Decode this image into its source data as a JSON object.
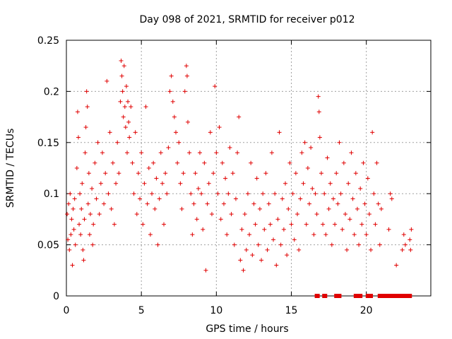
{
  "chart_data": {
    "type": "scatter",
    "title": "Day 098 of 2021, SRMTID for receiver p012",
    "xlabel": "GPS time / hours",
    "ylabel": "SRMTID / TECUs",
    "xlim": [
      0,
      24.3
    ],
    "ylim": [
      0,
      0.25
    ],
    "x_ticks": [
      0,
      5,
      10,
      15,
      20
    ],
    "x_tick_labels": [
      "0",
      "5",
      "10",
      "15",
      "20"
    ],
    "y_ticks": [
      0,
      0.05,
      0.1,
      0.15,
      0.2,
      0.25
    ],
    "y_tick_labels": [
      "0",
      "0.05",
      "0.1",
      "0.15",
      "0.2",
      "0.25"
    ],
    "grid": true,
    "marker": "+",
    "color": "#e00000",
    "series": [
      {
        "name": "SRMTID",
        "points": [
          [
            0.05,
            0.08
          ],
          [
            0.1,
            0.055
          ],
          [
            0.15,
            0.09
          ],
          [
            0.2,
            0.045
          ],
          [
            0.25,
            0.1
          ],
          [
            0.3,
            0.06
          ],
          [
            0.35,
            0.075
          ],
          [
            0.4,
            0.03
          ],
          [
            0.45,
            0.085
          ],
          [
            0.5,
            0.065
          ],
          [
            0.55,
            0.095
          ],
          [
            0.6,
            0.05
          ],
          [
            0.7,
            0.125
          ],
          [
            0.75,
            0.18
          ],
          [
            0.8,
            0.155
          ],
          [
            0.85,
            0.07
          ],
          [
            0.9,
            0.1
          ],
          [
            0.95,
            0.06
          ],
          [
            1.0,
            0.085
          ],
          [
            1.05,
            0.11
          ],
          [
            1.1,
            0.045
          ],
          [
            1.15,
            0.035
          ],
          [
            1.2,
            0.075
          ],
          [
            1.25,
            0.14
          ],
          [
            1.3,
            0.165
          ],
          [
            1.35,
            0.2
          ],
          [
            1.4,
            0.185
          ],
          [
            1.45,
            0.09
          ],
          [
            1.5,
            0.12
          ],
          [
            1.55,
            0.06
          ],
          [
            1.6,
            0.08
          ],
          [
            1.7,
            0.105
          ],
          [
            1.75,
            0.05
          ],
          [
            1.8,
            0.07
          ],
          [
            1.9,
            0.13
          ],
          [
            2.0,
            0.095
          ],
          [
            2.1,
            0.15
          ],
          [
            2.2,
            0.08
          ],
          [
            2.3,
            0.11
          ],
          [
            2.4,
            0.14
          ],
          [
            2.5,
            0.09
          ],
          [
            2.6,
            0.12
          ],
          [
            2.7,
            0.21
          ],
          [
            2.8,
            0.1
          ],
          [
            2.9,
            0.16
          ],
          [
            3.0,
            0.085
          ],
          [
            3.1,
            0.13
          ],
          [
            3.2,
            0.07
          ],
          [
            3.3,
            0.11
          ],
          [
            3.4,
            0.15
          ],
          [
            3.5,
            0.12
          ],
          [
            3.6,
            0.19
          ],
          [
            3.65,
            0.23
          ],
          [
            3.7,
            0.215
          ],
          [
            3.75,
            0.2
          ],
          [
            3.8,
            0.175
          ],
          [
            3.85,
            0.225
          ],
          [
            3.9,
            0.185
          ],
          [
            3.95,
            0.165
          ],
          [
            4.0,
            0.205
          ],
          [
            4.05,
            0.14
          ],
          [
            4.1,
            0.19
          ],
          [
            4.15,
            0.17
          ],
          [
            4.2,
            0.155
          ],
          [
            4.3,
            0.185
          ],
          [
            4.4,
            0.13
          ],
          [
            4.5,
            0.1
          ],
          [
            4.6,
            0.16
          ],
          [
            4.7,
            0.08
          ],
          [
            4.8,
            0.12
          ],
          [
            4.9,
            0.095
          ],
          [
            5.0,
            0.14
          ],
          [
            5.1,
            0.07
          ],
          [
            5.2,
            0.11
          ],
          [
            5.3,
            0.185
          ],
          [
            5.4,
            0.09
          ],
          [
            5.5,
            0.125
          ],
          [
            5.6,
            0.06
          ],
          [
            5.7,
            0.1
          ],
          [
            5.8,
            0.13
          ],
          [
            5.9,
            0.085
          ],
          [
            6.0,
            0.115
          ],
          [
            6.1,
            0.05
          ],
          [
            6.2,
            0.095
          ],
          [
            6.3,
            0.14
          ],
          [
            6.4,
            0.11
          ],
          [
            6.5,
            0.07
          ],
          [
            6.6,
            0.12
          ],
          [
            6.7,
            0.1
          ],
          [
            6.8,
            0.145
          ],
          [
            6.9,
            0.2
          ],
          [
            7.0,
            0.215
          ],
          [
            7.1,
            0.19
          ],
          [
            7.2,
            0.175
          ],
          [
            7.3,
            0.16
          ],
          [
            7.4,
            0.13
          ],
          [
            7.5,
            0.15
          ],
          [
            7.6,
            0.11
          ],
          [
            7.7,
            0.085
          ],
          [
            7.8,
            0.12
          ],
          [
            7.9,
            0.2
          ],
          [
            8.0,
            0.225
          ],
          [
            8.05,
            0.215
          ],
          [
            8.1,
            0.17
          ],
          [
            8.2,
            0.14
          ],
          [
            8.3,
            0.1
          ],
          [
            8.4,
            0.06
          ],
          [
            8.5,
            0.09
          ],
          [
            8.6,
            0.12
          ],
          [
            8.7,
            0.075
          ],
          [
            8.8,
            0.105
          ],
          [
            8.9,
            0.14
          ],
          [
            9.0,
            0.1
          ],
          [
            9.1,
            0.065
          ],
          [
            9.2,
            0.13
          ],
          [
            9.3,
            0.025
          ],
          [
            9.4,
            0.09
          ],
          [
            9.5,
            0.11
          ],
          [
            9.6,
            0.16
          ],
          [
            9.7,
            0.08
          ],
          [
            9.8,
            0.12
          ],
          [
            9.9,
            0.205
          ],
          [
            10.0,
            0.14
          ],
          [
            10.1,
            0.1
          ],
          [
            10.2,
            0.165
          ],
          [
            10.3,
            0.075
          ],
          [
            10.4,
            0.13
          ],
          [
            10.5,
            0.09
          ],
          [
            10.6,
            0.115
          ],
          [
            10.7,
            0.06
          ],
          [
            10.8,
            0.1
          ],
          [
            10.9,
            0.145
          ],
          [
            11.0,
            0.08
          ],
          [
            11.1,
            0.12
          ],
          [
            11.2,
            0.05
          ],
          [
            11.3,
            0.095
          ],
          [
            11.4,
            0.14
          ],
          [
            11.5,
            0.175
          ],
          [
            11.6,
            0.035
          ],
          [
            11.7,
            0.065
          ],
          [
            11.8,
            0.025
          ],
          [
            11.9,
            0.08
          ],
          [
            12.0,
            0.045
          ],
          [
            12.1,
            0.1
          ],
          [
            12.2,
            0.06
          ],
          [
            12.3,
            0.13
          ],
          [
            12.4,
            0.04
          ],
          [
            12.5,
            0.09
          ],
          [
            12.6,
            0.07
          ],
          [
            12.7,
            0.115
          ],
          [
            12.8,
            0.05
          ],
          [
            12.9,
            0.085
          ],
          [
            13.0,
            0.035
          ],
          [
            13.1,
            0.1
          ],
          [
            13.2,
            0.065
          ],
          [
            13.3,
            0.12
          ],
          [
            13.4,
            0.045
          ],
          [
            13.5,
            0.09
          ],
          [
            13.6,
            0.07
          ],
          [
            13.7,
            0.14
          ],
          [
            13.8,
            0.055
          ],
          [
            13.9,
            0.1
          ],
          [
            14.0,
            0.03
          ],
          [
            14.1,
            0.075
          ],
          [
            14.2,
            0.16
          ],
          [
            14.3,
            0.05
          ],
          [
            14.4,
            0.095
          ],
          [
            14.5,
            0.065
          ],
          [
            14.6,
            0.11
          ],
          [
            14.7,
            0.04
          ],
          [
            14.8,
            0.085
          ],
          [
            14.9,
            0.13
          ],
          [
            15.0,
            0.07
          ],
          [
            15.1,
            0.1
          ],
          [
            15.2,
            0.055
          ],
          [
            15.3,
            0.12
          ],
          [
            15.4,
            0.08
          ],
          [
            15.5,
            0.045
          ],
          [
            15.6,
            0.095
          ],
          [
            15.7,
            0.14
          ],
          [
            15.8,
            0.11
          ],
          [
            15.9,
            0.15
          ],
          [
            16.0,
            0.07
          ],
          [
            16.1,
            0.125
          ],
          [
            16.2,
            0.09
          ],
          [
            16.3,
            0.145
          ],
          [
            16.4,
            0.105
          ],
          [
            16.5,
            0.06
          ],
          [
            16.6,
            0.1
          ],
          [
            16.7,
            0.08
          ],
          [
            16.8,
            0.195
          ],
          [
            16.85,
            0.18
          ],
          [
            16.9,
            0.155
          ],
          [
            17.0,
            0.12
          ],
          [
            17.1,
            0.07
          ],
          [
            17.2,
            0.1
          ],
          [
            17.3,
            0.06
          ],
          [
            17.4,
            0.135
          ],
          [
            17.5,
            0.085
          ],
          [
            17.6,
            0.11
          ],
          [
            17.7,
            0.05
          ],
          [
            17.8,
            0.095
          ],
          [
            17.9,
            0.07
          ],
          [
            18.0,
            0.12
          ],
          [
            18.1,
            0.09
          ],
          [
            18.2,
            0.15
          ],
          [
            18.3,
            0.1
          ],
          [
            18.4,
            0.065
          ],
          [
            18.5,
            0.13
          ],
          [
            18.6,
            0.08
          ],
          [
            18.7,
            0.045
          ],
          [
            18.8,
            0.11
          ],
          [
            18.9,
            0.075
          ],
          [
            19.0,
            0.14
          ],
          [
            19.1,
            0.095
          ],
          [
            19.2,
            0.06
          ],
          [
            19.3,
            0.12
          ],
          [
            19.4,
            0.085
          ],
          [
            19.5,
            0.05
          ],
          [
            19.6,
            0.105
          ],
          [
            19.7,
            0.07
          ],
          [
            19.8,
            0.13
          ],
          [
            19.9,
            0.09
          ],
          [
            20.0,
            0.06
          ],
          [
            20.1,
            0.115
          ],
          [
            20.2,
            0.08
          ],
          [
            20.3,
            0.045
          ],
          [
            20.4,
            0.16
          ],
          [
            20.5,
            0.1
          ],
          [
            20.6,
            0.07
          ],
          [
            20.7,
            0.13
          ],
          [
            20.8,
            0.09
          ],
          [
            20.9,
            0.05
          ],
          [
            21.0,
            0.085
          ],
          [
            21.5,
            0.065
          ],
          [
            21.6,
            0.1
          ],
          [
            21.7,
            0.095
          ],
          [
            22.0,
            0.03
          ],
          [
            22.4,
            0.045
          ],
          [
            22.5,
            0.06
          ],
          [
            22.6,
            0.05
          ],
          [
            22.9,
            0.055
          ],
          [
            23.0,
            0.065
          ],
          [
            22.95,
            0.045
          ]
        ]
      }
    ],
    "zero_points_x": [
      16.7,
      16.75,
      17.2,
      17.25,
      18.0,
      18.1,
      18.2,
      19.3,
      19.4,
      19.6,
      20.1,
      20.15,
      20.2,
      20.3,
      20.9,
      21.0,
      21.1,
      21.2,
      21.3,
      21.4,
      21.5,
      21.6,
      21.7,
      21.8,
      21.9,
      22.0,
      22.1,
      22.2,
      22.3,
      22.5,
      22.6,
      22.7,
      22.8,
      22.9
    ]
  }
}
